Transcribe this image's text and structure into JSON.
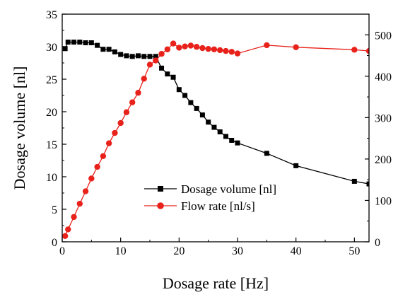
{
  "chart_data": {
    "type": "line",
    "xlabel": "Dosage rate [Hz]",
    "ylabel": "Dosage volume [nl]",
    "xlim": [
      0,
      52.5
    ],
    "ylim": [
      0,
      35
    ],
    "y2lim": [
      0,
      550
    ],
    "xticks": [
      0,
      10,
      20,
      30,
      40,
      50
    ],
    "yticks": [
      0,
      5,
      10,
      15,
      20,
      25,
      30,
      35
    ],
    "y2ticks": [
      0,
      100,
      200,
      300,
      400,
      500
    ],
    "legend_position": "center-right",
    "series": [
      {
        "name": "Dosage volume [nl]",
        "axis": "left",
        "color": "#000000",
        "marker": "square",
        "points": [
          [
            0.5,
            29.7
          ],
          [
            1,
            30.7
          ],
          [
            2,
            30.7
          ],
          [
            3,
            30.7
          ],
          [
            4,
            30.6
          ],
          [
            5,
            30.6
          ],
          [
            6,
            30.2
          ],
          [
            7,
            29.6
          ],
          [
            8,
            29.6
          ],
          [
            9,
            29.2
          ],
          [
            10,
            28.8
          ],
          [
            11,
            28.6
          ],
          [
            12,
            28.5
          ],
          [
            13,
            28.6
          ],
          [
            14,
            28.5
          ],
          [
            15,
            28.5
          ],
          [
            16,
            28.5
          ],
          [
            17,
            26.7
          ],
          [
            18,
            25.8
          ],
          [
            19,
            25.3
          ],
          [
            20,
            23.4
          ],
          [
            21,
            22.5
          ],
          [
            22,
            21.4
          ],
          [
            23,
            20.5
          ],
          [
            24,
            19.5
          ],
          [
            25,
            18.4
          ],
          [
            26,
            17.6
          ],
          [
            27,
            16.9
          ],
          [
            28,
            16.2
          ],
          [
            29,
            15.6
          ],
          [
            30,
            15.2
          ],
          [
            35,
            13.6
          ],
          [
            40,
            11.7
          ],
          [
            50,
            9.3
          ],
          [
            52.5,
            8.9
          ]
        ]
      },
      {
        "name": "Flow rate [nl/s]",
        "axis": "right",
        "color": "#e8211a",
        "marker": "circle",
        "points": [
          [
            0.5,
            14
          ],
          [
            1,
            30
          ],
          [
            2,
            60
          ],
          [
            3,
            92
          ],
          [
            4,
            122
          ],
          [
            5,
            153
          ],
          [
            6,
            181
          ],
          [
            7,
            207
          ],
          [
            8,
            238
          ],
          [
            9,
            263
          ],
          [
            10,
            287
          ],
          [
            11,
            313
          ],
          [
            12,
            337
          ],
          [
            13,
            360
          ],
          [
            14,
            394
          ],
          [
            15,
            428
          ],
          [
            16,
            438
          ],
          [
            17,
            454
          ],
          [
            18,
            465
          ],
          [
            19,
            479
          ],
          [
            20,
            469
          ],
          [
            21,
            472
          ],
          [
            22,
            474
          ],
          [
            23,
            471
          ],
          [
            24,
            468
          ],
          [
            25,
            466
          ],
          [
            26,
            465
          ],
          [
            27,
            463
          ],
          [
            28,
            461
          ],
          [
            29,
            459
          ],
          [
            30,
            455
          ],
          [
            35,
            475
          ],
          [
            40,
            470
          ],
          [
            50,
            464
          ],
          [
            52.5,
            461
          ]
        ]
      }
    ]
  }
}
